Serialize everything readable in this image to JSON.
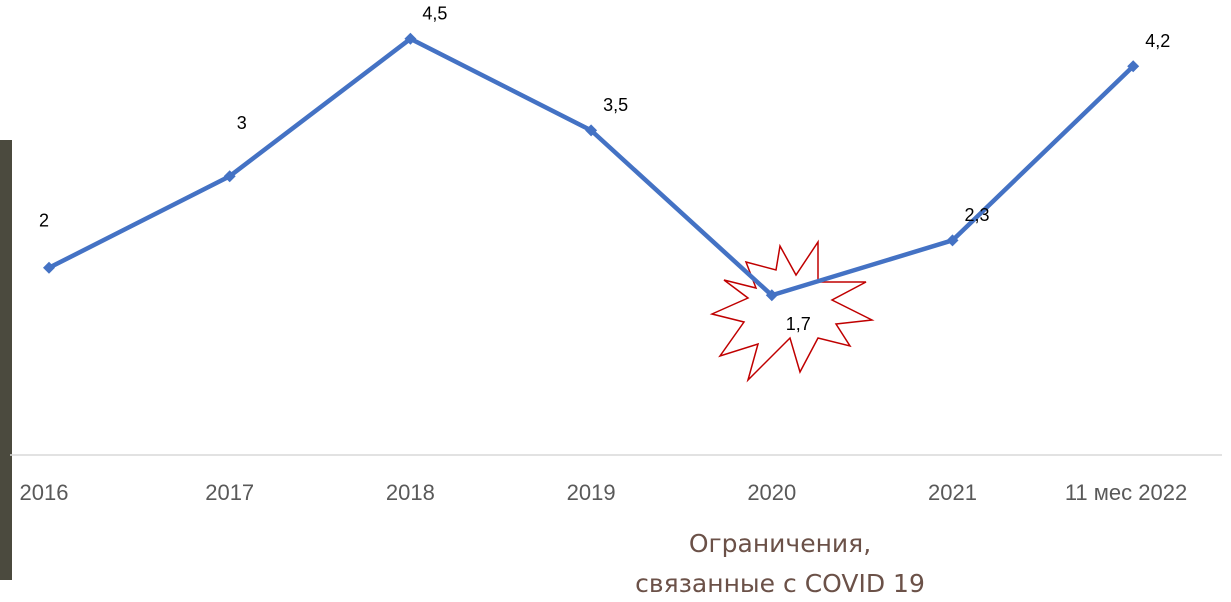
{
  "chart_data": {
    "type": "line",
    "categories": [
      "2016",
      "2017",
      "2018",
      "2019",
      "2020",
      "2021",
      "11 мес 2022"
    ],
    "values": [
      2,
      3,
      4.5,
      3.5,
      1.7,
      2.3,
      4.2
    ],
    "value_labels": [
      "2",
      "3",
      "4,5",
      "3,5",
      "1,7",
      "2,3",
      "4,2"
    ],
    "color": "#4472c4",
    "ylim": [
      0,
      5
    ],
    "annotation": [
      "Ограничения,",
      "связанные с COVID 19"
    ]
  }
}
